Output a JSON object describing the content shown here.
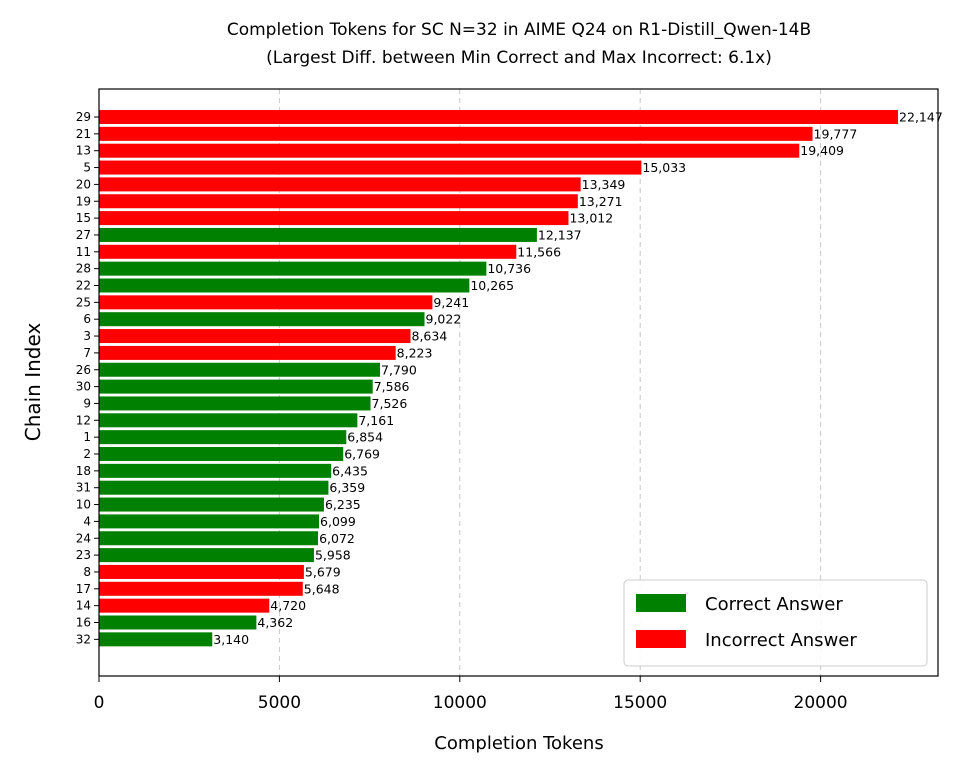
{
  "chart_data": {
    "type": "bar",
    "orientation": "horizontal",
    "title": "Completion Tokens for SC N=32 in AIME Q24 on R1-Distill_Qwen-14B",
    "subtitle": "(Largest Diff. between Min Correct and Max Incorrect: 6.1x)",
    "xlabel": "Completion Tokens",
    "ylabel": "Chain Index",
    "xlim": [
      0,
      23254
    ],
    "xticks": [
      0,
      5000,
      10000,
      15000,
      20000
    ],
    "grid": "x-dashed",
    "legend_position": "bottom-right",
    "colors": {
      "correct": "#008000",
      "incorrect": "#ff0000"
    },
    "legend": [
      {
        "key": "correct",
        "label": "Correct Answer"
      },
      {
        "key": "incorrect",
        "label": "Incorrect Answer"
      }
    ],
    "bars": [
      {
        "chain": "29",
        "value": 22147,
        "label": "22,147",
        "correct": false
      },
      {
        "chain": "21",
        "value": 19777,
        "label": "19,777",
        "correct": false
      },
      {
        "chain": "13",
        "value": 19409,
        "label": "19,409",
        "correct": false
      },
      {
        "chain": "5",
        "value": 15033,
        "label": "15,033",
        "correct": false
      },
      {
        "chain": "20",
        "value": 13349,
        "label": "13,349",
        "correct": false
      },
      {
        "chain": "19",
        "value": 13271,
        "label": "13,271",
        "correct": false
      },
      {
        "chain": "15",
        "value": 13012,
        "label": "13,012",
        "correct": false
      },
      {
        "chain": "27",
        "value": 12137,
        "label": "12,137",
        "correct": true
      },
      {
        "chain": "11",
        "value": 11566,
        "label": "11,566",
        "correct": false
      },
      {
        "chain": "28",
        "value": 10736,
        "label": "10,736",
        "correct": true
      },
      {
        "chain": "22",
        "value": 10265,
        "label": "10,265",
        "correct": true
      },
      {
        "chain": "25",
        "value": 9241,
        "label": "9,241",
        "correct": false
      },
      {
        "chain": "6",
        "value": 9022,
        "label": "9,022",
        "correct": true
      },
      {
        "chain": "3",
        "value": 8634,
        "label": "8,634",
        "correct": false
      },
      {
        "chain": "7",
        "value": 8223,
        "label": "8,223",
        "correct": false
      },
      {
        "chain": "26",
        "value": 7790,
        "label": "7,790",
        "correct": true
      },
      {
        "chain": "30",
        "value": 7586,
        "label": "7,586",
        "correct": true
      },
      {
        "chain": "9",
        "value": 7526,
        "label": "7,526",
        "correct": true
      },
      {
        "chain": "12",
        "value": 7161,
        "label": "7,161",
        "correct": true
      },
      {
        "chain": "1",
        "value": 6854,
        "label": "6,854",
        "correct": true
      },
      {
        "chain": "2",
        "value": 6769,
        "label": "6,769",
        "correct": true
      },
      {
        "chain": "18",
        "value": 6435,
        "label": "6,435",
        "correct": true
      },
      {
        "chain": "31",
        "value": 6359,
        "label": "6,359",
        "correct": true
      },
      {
        "chain": "10",
        "value": 6235,
        "label": "6,235",
        "correct": true
      },
      {
        "chain": "4",
        "value": 6099,
        "label": "6,099",
        "correct": true
      },
      {
        "chain": "24",
        "value": 6072,
        "label": "6,072",
        "correct": true
      },
      {
        "chain": "23",
        "value": 5958,
        "label": "5,958",
        "correct": true
      },
      {
        "chain": "8",
        "value": 5679,
        "label": "5,679",
        "correct": false
      },
      {
        "chain": "17",
        "value": 5648,
        "label": "5,648",
        "correct": false
      },
      {
        "chain": "14",
        "value": 4720,
        "label": "4,720",
        "correct": false
      },
      {
        "chain": "16",
        "value": 4362,
        "label": "4,362",
        "correct": true
      },
      {
        "chain": "32",
        "value": 3140,
        "label": "3,140",
        "correct": true
      }
    ]
  }
}
